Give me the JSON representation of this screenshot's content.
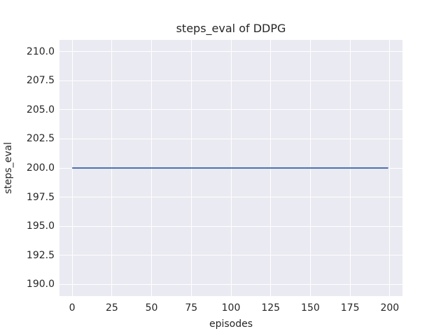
{
  "chart_data": {
    "type": "line",
    "title": "steps_eval of DDPG",
    "xlabel": "episodes",
    "ylabel": "steps_eval",
    "x_ticks": [
      0,
      25,
      50,
      75,
      100,
      125,
      150,
      175,
      200
    ],
    "x_tick_labels": [
      "0",
      "25",
      "50",
      "75",
      "100",
      "125",
      "150",
      "175",
      "200"
    ],
    "y_ticks": [
      190.0,
      192.5,
      195.0,
      197.5,
      200.0,
      202.5,
      205.0,
      207.5,
      210.0
    ],
    "y_tick_labels": [
      "190.0",
      "192.5",
      "195.0",
      "197.5",
      "200.0",
      "202.5",
      "205.0",
      "207.5",
      "210.0"
    ],
    "xlim": [
      -8,
      208
    ],
    "ylim": [
      189,
      211
    ],
    "grid": true,
    "legend": "none",
    "series": [
      {
        "name": "steps_eval",
        "color": "#4C72B0",
        "line_width": 2,
        "x": [
          0,
          199
        ],
        "y": [
          200,
          200
        ]
      }
    ],
    "colors": {
      "figure_background": "#FFFFFF",
      "plot_background": "#EAEAF2",
      "grid": "#FFFFFF",
      "text": "#262626"
    }
  }
}
